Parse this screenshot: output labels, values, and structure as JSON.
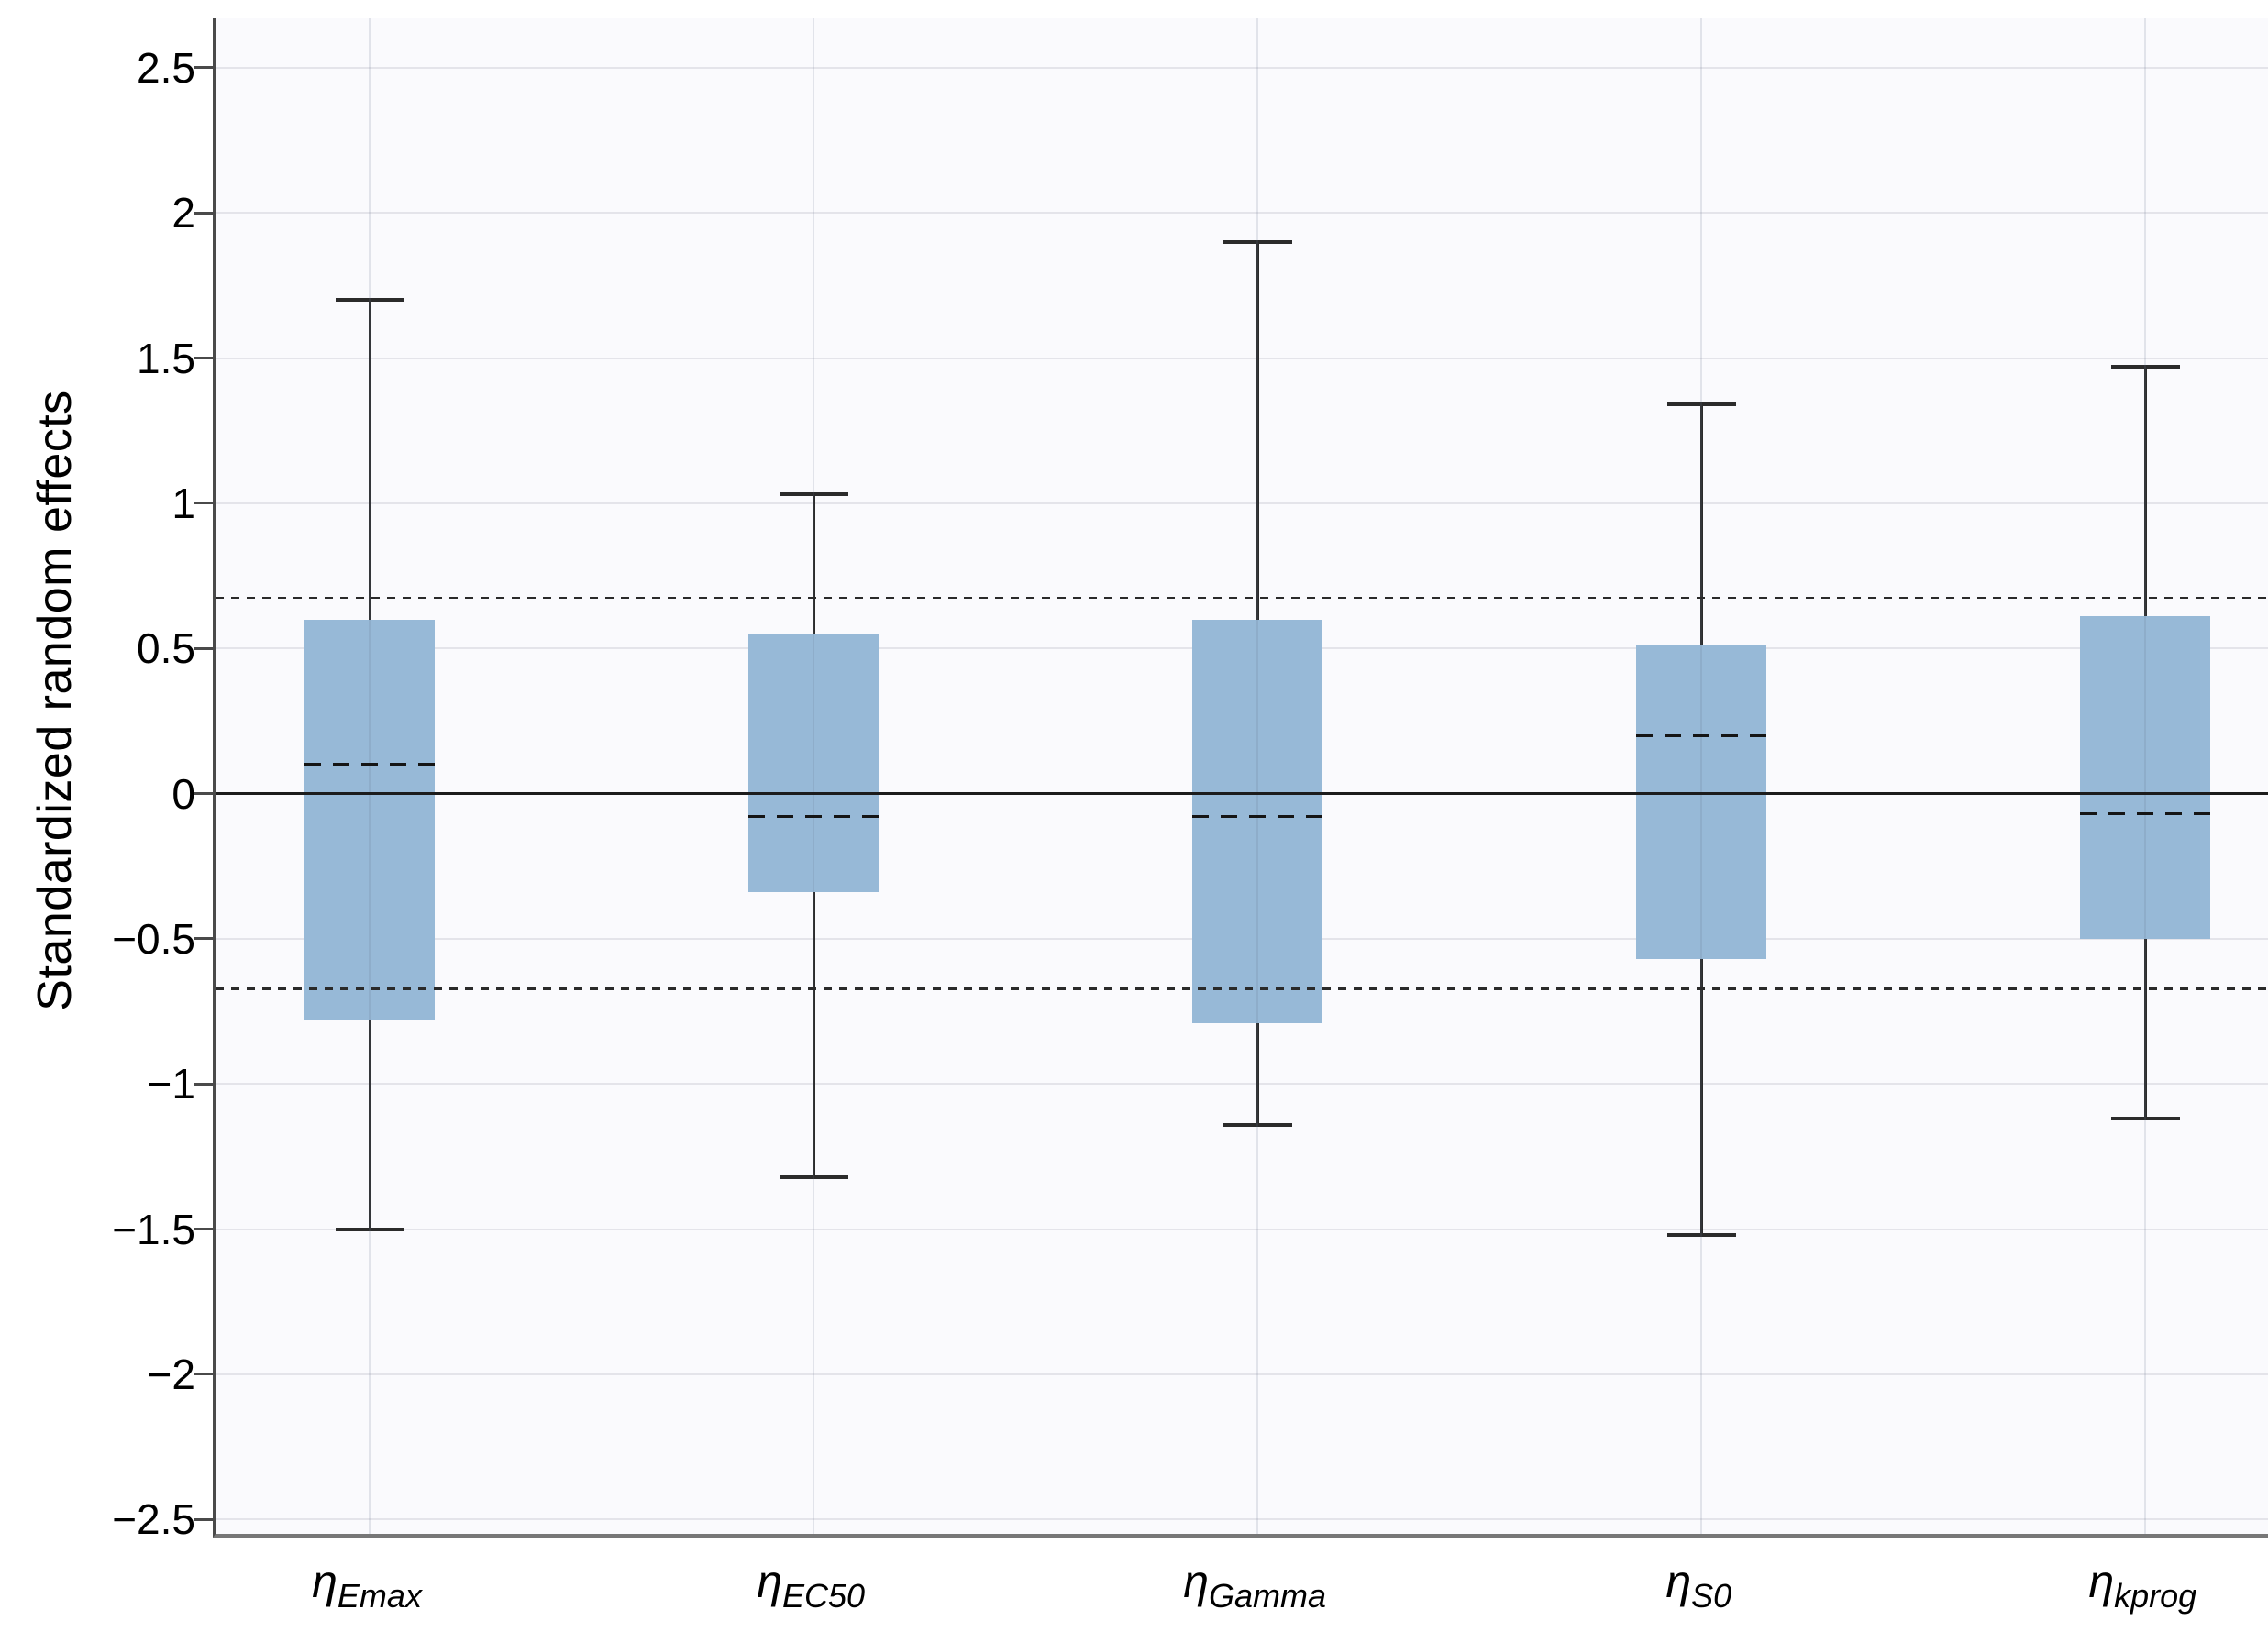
{
  "figure": {
    "ylabel": "Standardized random effects"
  },
  "chart_data": {
    "type": "boxplot",
    "title": "",
    "xlabel": "",
    "ylabel": "Standardized random effects",
    "ylim": [
      -2.55,
      2.67
    ],
    "yticks": [
      2.5,
      2,
      1.5,
      1,
      0.5,
      0,
      -0.5,
      -1,
      -1.5,
      -2,
      -2.5
    ],
    "ytick_labels": [
      "2.5",
      "2",
      "1.5",
      "1",
      "0.5",
      "0",
      "−0.5",
      "−1",
      "−1.5",
      "−2",
      "−2.5"
    ],
    "grid": true,
    "legend": "none",
    "median_line_style": "dashed",
    "reference_lines": [
      {
        "y": 0,
        "style": "solid"
      },
      {
        "y": 0.674,
        "style": "dotted"
      },
      {
        "y": -0.674,
        "style": "dotted"
      }
    ],
    "categories": [
      {
        "base": "η",
        "sub": "Emax"
      },
      {
        "base": "η",
        "sub": "EC50"
      },
      {
        "base": "η",
        "sub": "Gamma"
      },
      {
        "base": "η",
        "sub": "S0"
      },
      {
        "base": "η",
        "sub": "kprog"
      }
    ],
    "series": [
      {
        "name": "eta_Emax",
        "whisker_low": -1.5,
        "q1": -0.78,
        "median": 0.1,
        "q3": 0.6,
        "whisker_high": 1.7
      },
      {
        "name": "eta_EC50",
        "whisker_low": -1.32,
        "q1": -0.34,
        "median": -0.08,
        "q3": 0.55,
        "whisker_high": 1.03
      },
      {
        "name": "eta_Gamma",
        "whisker_low": -1.14,
        "q1": -0.79,
        "median": -0.08,
        "q3": 0.6,
        "whisker_high": 1.9
      },
      {
        "name": "eta_S0",
        "whisker_low": -1.52,
        "q1": -0.57,
        "median": 0.2,
        "q3": 0.51,
        "whisker_high": 1.34
      },
      {
        "name": "eta_kprog",
        "whisker_low": -1.12,
        "q1": -0.5,
        "median": -0.07,
        "q3": 0.61,
        "whisker_high": 1.47
      }
    ],
    "colors": {
      "box_fill": "#97b9d7",
      "whisker": "#2b2b2b",
      "grid": "#e4e4ea",
      "plot_bg": "#fafafd",
      "reference": "#1c1c1c"
    }
  }
}
